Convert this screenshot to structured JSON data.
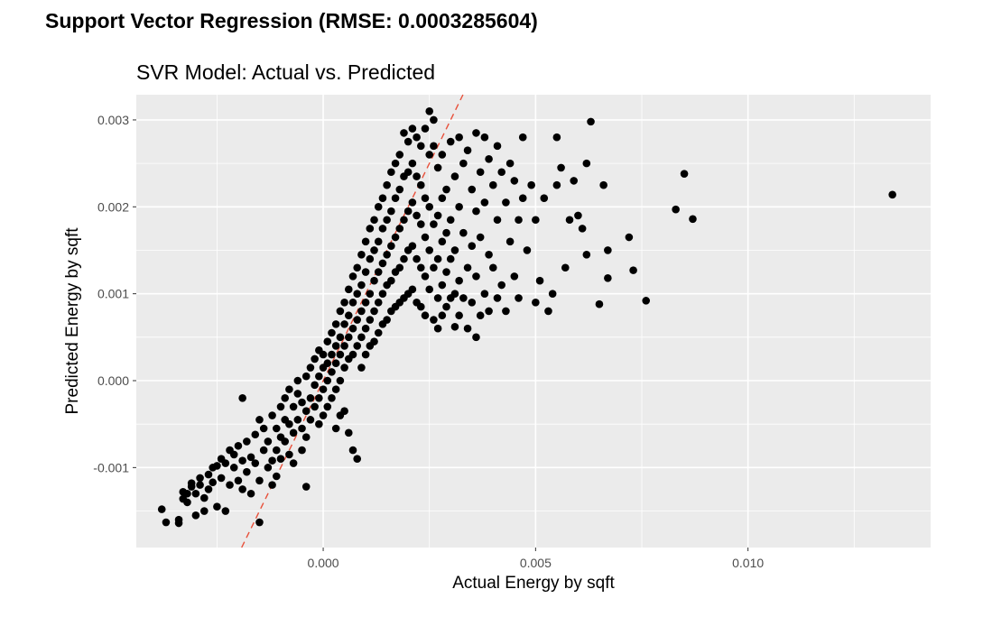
{
  "page": {
    "heading": "Support Vector Regression (RMSE: 0.0003285604)"
  },
  "chart_data": {
    "type": "scatter",
    "title": "SVR Model: Actual vs. Predicted",
    "xlabel": "Actual Energy by sqft",
    "ylabel": "Predicted Energy by sqft",
    "xlim": [
      -0.0044,
      0.0143
    ],
    "ylim": [
      -0.00192,
      0.00329
    ],
    "x_ticks": [
      {
        "value": 0.0,
        "label": "0.000"
      },
      {
        "value": 0.005,
        "label": "0.005"
      },
      {
        "value": 0.01,
        "label": "0.010"
      }
    ],
    "y_ticks": [
      {
        "value": -0.001,
        "label": "-0.001"
      },
      {
        "value": 0.0,
        "label": "0.000"
      },
      {
        "value": 0.001,
        "label": "0.001"
      },
      {
        "value": 0.002,
        "label": "0.002"
      },
      {
        "value": 0.003,
        "label": "0.003"
      }
    ],
    "grid": true,
    "panel_background": "#ebebeb",
    "grid_color": "#ffffff",
    "point_color": "#000000",
    "reference_line": {
      "slope": 1,
      "intercept": 0,
      "color": "#e8503a",
      "style": "dashed"
    },
    "points": [
      [
        -0.0038,
        -0.00148
      ],
      [
        -0.0037,
        -0.00163
      ],
      [
        -0.0034,
        -0.00164
      ],
      [
        -0.0034,
        -0.0016
      ],
      [
        -0.0033,
        -0.00136
      ],
      [
        -0.0033,
        -0.00128
      ],
      [
        -0.0032,
        -0.0013
      ],
      [
        -0.0032,
        -0.0014
      ],
      [
        -0.0031,
        -0.00122
      ],
      [
        -0.0031,
        -0.00118
      ],
      [
        -0.003,
        -0.0013
      ],
      [
        -0.003,
        -0.00155
      ],
      [
        -0.0029,
        -0.0012
      ],
      [
        -0.0029,
        -0.00112
      ],
      [
        -0.0028,
        -0.00135
      ],
      [
        -0.0028,
        -0.0015
      ],
      [
        -0.0027,
        -0.00108
      ],
      [
        -0.0027,
        -0.00125
      ],
      [
        -0.0026,
        -0.00117
      ],
      [
        -0.0026,
        -0.001
      ],
      [
        -0.0025,
        -0.00145
      ],
      [
        -0.0025,
        -0.00098
      ],
      [
        -0.0024,
        -0.00112
      ],
      [
        -0.0024,
        -0.0009
      ],
      [
        -0.0023,
        -0.0015
      ],
      [
        -0.0023,
        -0.00095
      ],
      [
        -0.0022,
        -0.0008
      ],
      [
        -0.0022,
        -0.0012
      ],
      [
        -0.0021,
        -0.001
      ],
      [
        -0.0021,
        -0.00085
      ],
      [
        -0.002,
        -0.00115
      ],
      [
        -0.002,
        -0.00075
      ],
      [
        -0.0019,
        -0.00092
      ],
      [
        -0.0019,
        -0.00125
      ],
      [
        -0.0019,
        -0.0002
      ],
      [
        -0.0018,
        -0.0007
      ],
      [
        -0.0018,
        -0.00105
      ],
      [
        -0.0017,
        -0.00088
      ],
      [
        -0.0017,
        -0.0013
      ],
      [
        -0.0016,
        -0.00062
      ],
      [
        -0.0016,
        -0.00095
      ],
      [
        -0.0015,
        -0.00045
      ],
      [
        -0.0015,
        -0.00115
      ],
      [
        -0.0015,
        -0.00163
      ],
      [
        -0.0014,
        -0.0008
      ],
      [
        -0.0014,
        -0.00055
      ],
      [
        -0.0013,
        -0.001
      ],
      [
        -0.0013,
        -0.0007
      ],
      [
        -0.0012,
        -0.0012
      ],
      [
        -0.0012,
        -0.0004
      ],
      [
        -0.0012,
        -0.00092
      ],
      [
        -0.0011,
        -0.00055
      ],
      [
        -0.0011,
        -0.0008
      ],
      [
        -0.0011,
        -0.0011
      ],
      [
        -0.001,
        -0.0003
      ],
      [
        -0.001,
        -0.00065
      ],
      [
        -0.001,
        -0.0009
      ],
      [
        -0.0009,
        -0.00045
      ],
      [
        -0.0009,
        -0.0002
      ],
      [
        -0.0009,
        -0.0007
      ],
      [
        -0.0008,
        -0.0005
      ],
      [
        -0.0008,
        -0.0001
      ],
      [
        -0.0008,
        -0.00085
      ],
      [
        -0.0007,
        -0.0003
      ],
      [
        -0.0007,
        -0.0006
      ],
      [
        -0.0007,
        -0.00095
      ],
      [
        -0.0006,
        -0.00015
      ],
      [
        -0.0006,
        -0.00045
      ],
      [
        -0.0006,
        0.0
      ],
      [
        -0.0005,
        -0.00025
      ],
      [
        -0.0005,
        -0.00055
      ],
      [
        -0.0005,
        -0.0008
      ],
      [
        -0.0004,
        5e-05
      ],
      [
        -0.0004,
        -0.00035
      ],
      [
        -0.0004,
        -0.00065
      ],
      [
        -0.0004,
        -0.00122
      ],
      [
        -0.0003,
        0.00015
      ],
      [
        -0.0003,
        -0.0002
      ],
      [
        -0.0003,
        -0.00045
      ],
      [
        -0.0002,
        0.00025
      ],
      [
        -0.0002,
        -5e-05
      ],
      [
        -0.0002,
        -0.0003
      ],
      [
        -0.0001,
        0.00035
      ],
      [
        -0.0001,
        5e-05
      ],
      [
        -0.0001,
        -0.0002
      ],
      [
        -0.0001,
        -0.0005
      ],
      [
        0.0,
        0.0003
      ],
      [
        0.0,
        0.00015
      ],
      [
        0.0,
        -0.0001
      ],
      [
        0.0,
        -0.0004
      ],
      [
        0.0001,
        0.00045
      ],
      [
        0.0001,
        0.0002
      ],
      [
        0.0001,
        0.0
      ],
      [
        0.0001,
        -0.0003
      ],
      [
        0.0002,
        0.00055
      ],
      [
        0.0002,
        0.0003
      ],
      [
        0.0002,
        0.0001
      ],
      [
        0.0002,
        -0.0002
      ],
      [
        0.0003,
        0.00065
      ],
      [
        0.0003,
        0.0004
      ],
      [
        0.0003,
        0.0002
      ],
      [
        0.0003,
        -0.0001
      ],
      [
        0.0003,
        -0.00055
      ],
      [
        0.0004,
        0.0008
      ],
      [
        0.0004,
        0.0005
      ],
      [
        0.0004,
        0.0003
      ],
      [
        0.0004,
        0.0
      ],
      [
        0.0004,
        -0.0004
      ],
      [
        0.0005,
        0.0009
      ],
      [
        0.0005,
        0.00065
      ],
      [
        0.0005,
        0.0004
      ],
      [
        0.0005,
        0.00015
      ],
      [
        0.0005,
        -0.00035
      ],
      [
        0.0006,
        0.00105
      ],
      [
        0.0006,
        0.00075
      ],
      [
        0.0006,
        0.0005
      ],
      [
        0.0006,
        0.00025
      ],
      [
        0.0006,
        -0.0006
      ],
      [
        0.0007,
        0.0012
      ],
      [
        0.0007,
        0.0009
      ],
      [
        0.0007,
        0.0006
      ],
      [
        0.0007,
        0.0003
      ],
      [
        0.0007,
        -0.0008
      ],
      [
        0.0008,
        0.0013
      ],
      [
        0.0008,
        0.001
      ],
      [
        0.0008,
        0.0007
      ],
      [
        0.0008,
        0.0004
      ],
      [
        0.0008,
        -0.0009
      ],
      [
        0.0009,
        0.00145
      ],
      [
        0.0009,
        0.0011
      ],
      [
        0.0009,
        0.0008
      ],
      [
        0.0009,
        0.0005
      ],
      [
        0.0009,
        0.00015
      ],
      [
        0.001,
        0.0016
      ],
      [
        0.001,
        0.00125
      ],
      [
        0.001,
        0.0009
      ],
      [
        0.001,
        0.0006
      ],
      [
        0.001,
        0.0003
      ],
      [
        0.0011,
        0.00175
      ],
      [
        0.0011,
        0.0014
      ],
      [
        0.0011,
        0.001
      ],
      [
        0.0011,
        0.0007
      ],
      [
        0.0011,
        0.0004
      ],
      [
        0.0012,
        0.00185
      ],
      [
        0.0012,
        0.0015
      ],
      [
        0.0012,
        0.00115
      ],
      [
        0.0012,
        0.0008
      ],
      [
        0.0012,
        0.00045
      ],
      [
        0.0013,
        0.002
      ],
      [
        0.0013,
        0.0016
      ],
      [
        0.0013,
        0.00125
      ],
      [
        0.0013,
        0.0009
      ],
      [
        0.0013,
        0.00055
      ],
      [
        0.0014,
        0.0021
      ],
      [
        0.0014,
        0.00175
      ],
      [
        0.0014,
        0.00135
      ],
      [
        0.0014,
        0.001
      ],
      [
        0.0014,
        0.00065
      ],
      [
        0.0015,
        0.00225
      ],
      [
        0.0015,
        0.00185
      ],
      [
        0.0015,
        0.00145
      ],
      [
        0.0015,
        0.0011
      ],
      [
        0.0015,
        0.0007
      ],
      [
        0.0016,
        0.0024
      ],
      [
        0.0016,
        0.00195
      ],
      [
        0.0016,
        0.00155
      ],
      [
        0.0016,
        0.00115
      ],
      [
        0.0016,
        0.0008
      ],
      [
        0.0017,
        0.0025
      ],
      [
        0.0017,
        0.0021
      ],
      [
        0.0017,
        0.00165
      ],
      [
        0.0017,
        0.00125
      ],
      [
        0.0017,
        0.00085
      ],
      [
        0.0018,
        0.0026
      ],
      [
        0.0018,
        0.0022
      ],
      [
        0.0018,
        0.00175
      ],
      [
        0.0018,
        0.0013
      ],
      [
        0.0018,
        0.0009
      ],
      [
        0.0019,
        0.00285
      ],
      [
        0.0019,
        0.00235
      ],
      [
        0.0019,
        0.00185
      ],
      [
        0.0019,
        0.0014
      ],
      [
        0.0019,
        0.00095
      ],
      [
        0.002,
        0.00275
      ],
      [
        0.002,
        0.0024
      ],
      [
        0.002,
        0.00195
      ],
      [
        0.002,
        0.0015
      ],
      [
        0.002,
        0.001
      ],
      [
        0.0021,
        0.0029
      ],
      [
        0.0021,
        0.0025
      ],
      [
        0.0021,
        0.00205
      ],
      [
        0.0021,
        0.00155
      ],
      [
        0.0021,
        0.00105
      ],
      [
        0.0022,
        0.0028
      ],
      [
        0.0022,
        0.00235
      ],
      [
        0.0022,
        0.0019
      ],
      [
        0.0022,
        0.0014
      ],
      [
        0.0022,
        0.0009
      ],
      [
        0.0023,
        0.0027
      ],
      [
        0.0023,
        0.00225
      ],
      [
        0.0023,
        0.0018
      ],
      [
        0.0023,
        0.0013
      ],
      [
        0.0023,
        0.00085
      ],
      [
        0.0024,
        0.0029
      ],
      [
        0.0024,
        0.0021
      ],
      [
        0.0024,
        0.00165
      ],
      [
        0.0024,
        0.0012
      ],
      [
        0.0024,
        0.00075
      ],
      [
        0.0025,
        0.0031
      ],
      [
        0.0025,
        0.0026
      ],
      [
        0.0025,
        0.002
      ],
      [
        0.0025,
        0.0015
      ],
      [
        0.0025,
        0.00105
      ],
      [
        0.0026,
        0.003
      ],
      [
        0.0026,
        0.0027
      ],
      [
        0.0026,
        0.0018
      ],
      [
        0.0026,
        0.0013
      ],
      [
        0.0026,
        0.0007
      ],
      [
        0.0027,
        0.00245
      ],
      [
        0.0027,
        0.0019
      ],
      [
        0.0027,
        0.0014
      ],
      [
        0.0027,
        0.00095
      ],
      [
        0.0027,
        0.0006
      ],
      [
        0.0028,
        0.0026
      ],
      [
        0.0028,
        0.0021
      ],
      [
        0.0028,
        0.0016
      ],
      [
        0.0028,
        0.0011
      ],
      [
        0.0028,
        0.00075
      ],
      [
        0.0029,
        0.0022
      ],
      [
        0.0029,
        0.0017
      ],
      [
        0.0029,
        0.00125
      ],
      [
        0.0029,
        0.00085
      ],
      [
        0.003,
        0.00275
      ],
      [
        0.003,
        0.00185
      ],
      [
        0.003,
        0.0014
      ],
      [
        0.003,
        0.00095
      ],
      [
        0.0031,
        0.00235
      ],
      [
        0.0031,
        0.0015
      ],
      [
        0.0031,
        0.001
      ],
      [
        0.0031,
        0.00062
      ],
      [
        0.0032,
        0.0028
      ],
      [
        0.0032,
        0.002
      ],
      [
        0.0032,
        0.00115
      ],
      [
        0.0032,
        0.00075
      ],
      [
        0.0033,
        0.0025
      ],
      [
        0.0033,
        0.0017
      ],
      [
        0.0033,
        0.00095
      ],
      [
        0.0034,
        0.00265
      ],
      [
        0.0034,
        0.0013
      ],
      [
        0.0034,
        0.0006
      ],
      [
        0.0035,
        0.0022
      ],
      [
        0.0035,
        0.00155
      ],
      [
        0.0035,
        0.0009
      ],
      [
        0.0036,
        0.00285
      ],
      [
        0.0036,
        0.00195
      ],
      [
        0.0036,
        0.0012
      ],
      [
        0.0036,
        0.0005
      ],
      [
        0.0037,
        0.0024
      ],
      [
        0.0037,
        0.00165
      ],
      [
        0.0037,
        0.00075
      ],
      [
        0.0038,
        0.0028
      ],
      [
        0.0038,
        0.00205
      ],
      [
        0.0038,
        0.001
      ],
      [
        0.0039,
        0.00255
      ],
      [
        0.0039,
        0.00145
      ],
      [
        0.0039,
        0.0008
      ],
      [
        0.004,
        0.00225
      ],
      [
        0.004,
        0.0013
      ],
      [
        0.0041,
        0.0027
      ],
      [
        0.0041,
        0.00185
      ],
      [
        0.0041,
        0.00095
      ],
      [
        0.0042,
        0.0024
      ],
      [
        0.0042,
        0.0011
      ],
      [
        0.0043,
        0.00205
      ],
      [
        0.0043,
        0.0008
      ],
      [
        0.0044,
        0.0025
      ],
      [
        0.0044,
        0.0016
      ],
      [
        0.0045,
        0.0023
      ],
      [
        0.0045,
        0.0012
      ],
      [
        0.0046,
        0.00185
      ],
      [
        0.0046,
        0.00095
      ],
      [
        0.0047,
        0.0028
      ],
      [
        0.0047,
        0.0021
      ],
      [
        0.0048,
        0.0015
      ],
      [
        0.0049,
        0.00225
      ],
      [
        0.005,
        0.00185
      ],
      [
        0.005,
        0.0009
      ],
      [
        0.0051,
        0.00115
      ],
      [
        0.0052,
        0.0021
      ],
      [
        0.0053,
        0.0008
      ],
      [
        0.0054,
        0.001
      ],
      [
        0.0055,
        0.0028
      ],
      [
        0.0055,
        0.00225
      ],
      [
        0.0056,
        0.00245
      ],
      [
        0.0057,
        0.0013
      ],
      [
        0.0058,
        0.00185
      ],
      [
        0.0059,
        0.0023
      ],
      [
        0.006,
        0.0019
      ],
      [
        0.0061,
        0.00175
      ],
      [
        0.0062,
        0.0025
      ],
      [
        0.0062,
        0.00145
      ],
      [
        0.0063,
        0.00298
      ],
      [
        0.0065,
        0.00088
      ],
      [
        0.0066,
        0.00225
      ],
      [
        0.0067,
        0.0015
      ],
      [
        0.0067,
        0.00118
      ],
      [
        0.0072,
        0.00165
      ],
      [
        0.0073,
        0.00127
      ],
      [
        0.0076,
        0.00092
      ],
      [
        0.0083,
        0.00197
      ],
      [
        0.0085,
        0.00238
      ],
      [
        0.0087,
        0.00186
      ],
      [
        0.0134,
        0.00214
      ]
    ]
  }
}
